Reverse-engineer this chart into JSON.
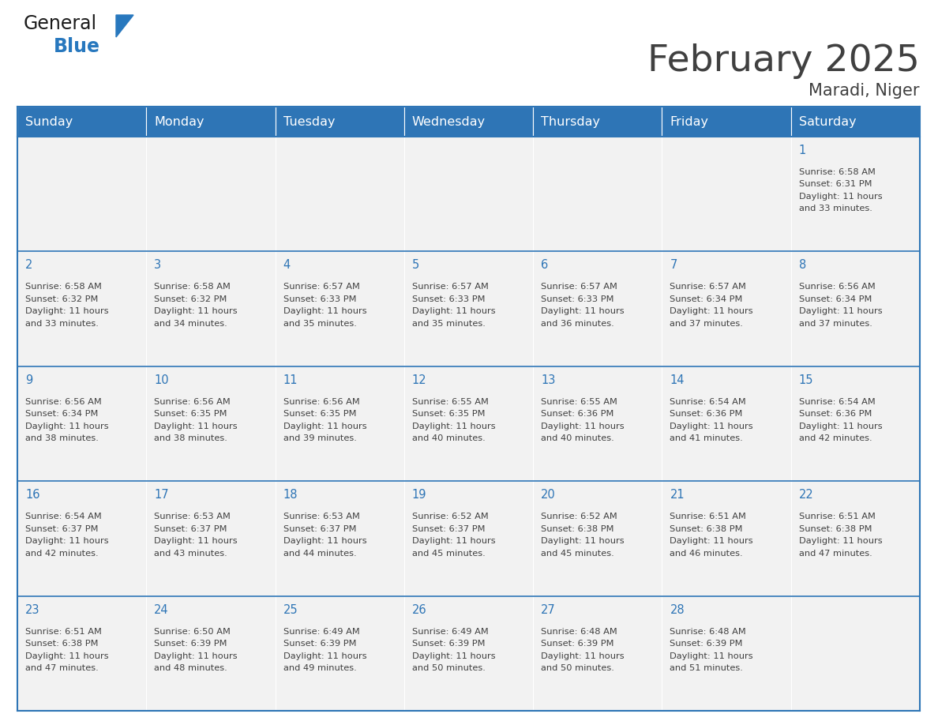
{
  "title": "February 2025",
  "subtitle": "Maradi, Niger",
  "header_color": "#2E75B6",
  "header_text_color": "#FFFFFF",
  "cell_bg_color": "#F2F2F2",
  "border_color": "#2E75B6",
  "day_names": [
    "Sunday",
    "Monday",
    "Tuesday",
    "Wednesday",
    "Thursday",
    "Friday",
    "Saturday"
  ],
  "days": [
    {
      "day": 1,
      "col": 6,
      "row": 0,
      "sunrise": "6:58 AM",
      "sunset": "6:31 PM",
      "daylight_hours": 11,
      "daylight_minutes": 33
    },
    {
      "day": 2,
      "col": 0,
      "row": 1,
      "sunrise": "6:58 AM",
      "sunset": "6:32 PM",
      "daylight_hours": 11,
      "daylight_minutes": 33
    },
    {
      "day": 3,
      "col": 1,
      "row": 1,
      "sunrise": "6:58 AM",
      "sunset": "6:32 PM",
      "daylight_hours": 11,
      "daylight_minutes": 34
    },
    {
      "day": 4,
      "col": 2,
      "row": 1,
      "sunrise": "6:57 AM",
      "sunset": "6:33 PM",
      "daylight_hours": 11,
      "daylight_minutes": 35
    },
    {
      "day": 5,
      "col": 3,
      "row": 1,
      "sunrise": "6:57 AM",
      "sunset": "6:33 PM",
      "daylight_hours": 11,
      "daylight_minutes": 35
    },
    {
      "day": 6,
      "col": 4,
      "row": 1,
      "sunrise": "6:57 AM",
      "sunset": "6:33 PM",
      "daylight_hours": 11,
      "daylight_minutes": 36
    },
    {
      "day": 7,
      "col": 5,
      "row": 1,
      "sunrise": "6:57 AM",
      "sunset": "6:34 PM",
      "daylight_hours": 11,
      "daylight_minutes": 37
    },
    {
      "day": 8,
      "col": 6,
      "row": 1,
      "sunrise": "6:56 AM",
      "sunset": "6:34 PM",
      "daylight_hours": 11,
      "daylight_minutes": 37
    },
    {
      "day": 9,
      "col": 0,
      "row": 2,
      "sunrise": "6:56 AM",
      "sunset": "6:34 PM",
      "daylight_hours": 11,
      "daylight_minutes": 38
    },
    {
      "day": 10,
      "col": 1,
      "row": 2,
      "sunrise": "6:56 AM",
      "sunset": "6:35 PM",
      "daylight_hours": 11,
      "daylight_minutes": 38
    },
    {
      "day": 11,
      "col": 2,
      "row": 2,
      "sunrise": "6:56 AM",
      "sunset": "6:35 PM",
      "daylight_hours": 11,
      "daylight_minutes": 39
    },
    {
      "day": 12,
      "col": 3,
      "row": 2,
      "sunrise": "6:55 AM",
      "sunset": "6:35 PM",
      "daylight_hours": 11,
      "daylight_minutes": 40
    },
    {
      "day": 13,
      "col": 4,
      "row": 2,
      "sunrise": "6:55 AM",
      "sunset": "6:36 PM",
      "daylight_hours": 11,
      "daylight_minutes": 40
    },
    {
      "day": 14,
      "col": 5,
      "row": 2,
      "sunrise": "6:54 AM",
      "sunset": "6:36 PM",
      "daylight_hours": 11,
      "daylight_minutes": 41
    },
    {
      "day": 15,
      "col": 6,
      "row": 2,
      "sunrise": "6:54 AM",
      "sunset": "6:36 PM",
      "daylight_hours": 11,
      "daylight_minutes": 42
    },
    {
      "day": 16,
      "col": 0,
      "row": 3,
      "sunrise": "6:54 AM",
      "sunset": "6:37 PM",
      "daylight_hours": 11,
      "daylight_minutes": 42
    },
    {
      "day": 17,
      "col": 1,
      "row": 3,
      "sunrise": "6:53 AM",
      "sunset": "6:37 PM",
      "daylight_hours": 11,
      "daylight_minutes": 43
    },
    {
      "day": 18,
      "col": 2,
      "row": 3,
      "sunrise": "6:53 AM",
      "sunset": "6:37 PM",
      "daylight_hours": 11,
      "daylight_minutes": 44
    },
    {
      "day": 19,
      "col": 3,
      "row": 3,
      "sunrise": "6:52 AM",
      "sunset": "6:37 PM",
      "daylight_hours": 11,
      "daylight_minutes": 45
    },
    {
      "day": 20,
      "col": 4,
      "row": 3,
      "sunrise": "6:52 AM",
      "sunset": "6:38 PM",
      "daylight_hours": 11,
      "daylight_minutes": 45
    },
    {
      "day": 21,
      "col": 5,
      "row": 3,
      "sunrise": "6:51 AM",
      "sunset": "6:38 PM",
      "daylight_hours": 11,
      "daylight_minutes": 46
    },
    {
      "day": 22,
      "col": 6,
      "row": 3,
      "sunrise": "6:51 AM",
      "sunset": "6:38 PM",
      "daylight_hours": 11,
      "daylight_minutes": 47
    },
    {
      "day": 23,
      "col": 0,
      "row": 4,
      "sunrise": "6:51 AM",
      "sunset": "6:38 PM",
      "daylight_hours": 11,
      "daylight_minutes": 47
    },
    {
      "day": 24,
      "col": 1,
      "row": 4,
      "sunrise": "6:50 AM",
      "sunset": "6:39 PM",
      "daylight_hours": 11,
      "daylight_minutes": 48
    },
    {
      "day": 25,
      "col": 2,
      "row": 4,
      "sunrise": "6:49 AM",
      "sunset": "6:39 PM",
      "daylight_hours": 11,
      "daylight_minutes": 49
    },
    {
      "day": 26,
      "col": 3,
      "row": 4,
      "sunrise": "6:49 AM",
      "sunset": "6:39 PM",
      "daylight_hours": 11,
      "daylight_minutes": 50
    },
    {
      "day": 27,
      "col": 4,
      "row": 4,
      "sunrise": "6:48 AM",
      "sunset": "6:39 PM",
      "daylight_hours": 11,
      "daylight_minutes": 50
    },
    {
      "day": 28,
      "col": 5,
      "row": 4,
      "sunrise": "6:48 AM",
      "sunset": "6:39 PM",
      "daylight_hours": 11,
      "daylight_minutes": 51
    }
  ],
  "num_rows": 5,
  "num_cols": 7,
  "bg_color": "#FFFFFF",
  "day_number_color": "#2E75B6",
  "text_color": "#404040",
  "logo_general_color": "#1A1A1A",
  "logo_blue_color": "#2878BE"
}
